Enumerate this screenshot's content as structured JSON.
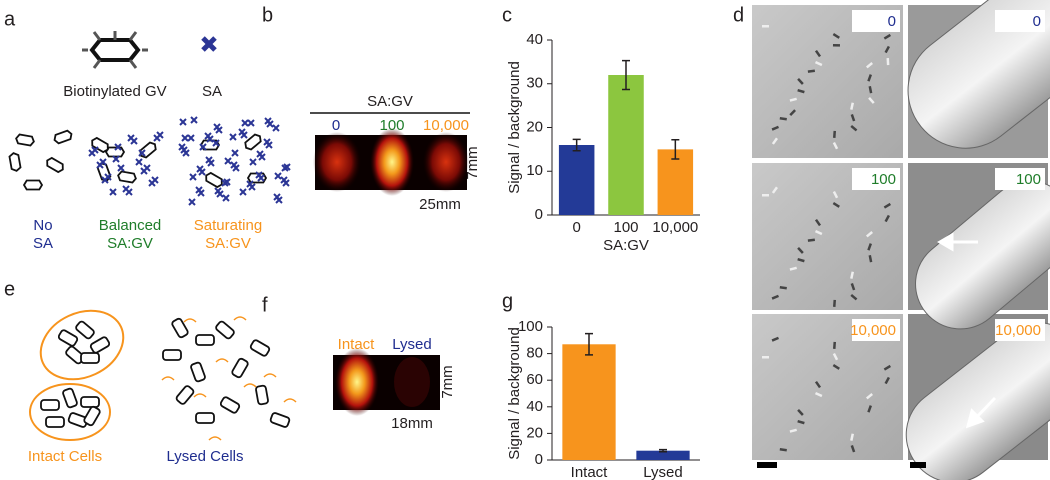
{
  "panel_letters": [
    "a",
    "b",
    "c",
    "d",
    "e",
    "f",
    "g"
  ],
  "panel_a": {
    "gv_label": "Biotinylated GV",
    "sa_label": "SA",
    "conditions": [
      [
        "No",
        "SA"
      ],
      [
        "Balanced",
        "SA:GV"
      ],
      [
        "Saturating",
        "SA:GV"
      ]
    ]
  },
  "panel_b": {
    "header": "SA:GV",
    "ratios": [
      "0",
      "100",
      "10,000"
    ],
    "height": "7mm",
    "width": "25mm"
  },
  "panel_d": {
    "labels": [
      "0",
      "100",
      "10,000"
    ]
  },
  "panel_e": {
    "labels": [
      "Intact Cells",
      "Lysed Cells"
    ]
  },
  "panel_f": {
    "labels": [
      "Intact",
      "Lysed"
    ],
    "height": "7mm",
    "width": "18mm"
  },
  "chart_data": [
    {
      "type": "bar",
      "ylabel": "Signal / background",
      "xlabel": "SA:GV",
      "categories": [
        "0",
        "100",
        "10,000"
      ],
      "values": [
        16,
        32,
        15
      ],
      "errors": [
        1.3,
        3.3,
        2.2
      ],
      "colors": [
        "#233a97",
        "#8cc63f",
        "#f7941d"
      ],
      "ylim": [
        0,
        40
      ],
      "yticks": [
        0,
        10,
        20,
        30,
        40
      ]
    },
    {
      "type": "bar",
      "ylabel": "Signal / background",
      "categories": [
        "Intact",
        "Lysed"
      ],
      "values": [
        87,
        7
      ],
      "errors": [
        8,
        0.8
      ],
      "colors": [
        "#f7941d",
        "#233a97"
      ],
      "ylim": [
        0,
        100
      ],
      "yticks": [
        0,
        20,
        40,
        60,
        80,
        100
      ]
    }
  ]
}
